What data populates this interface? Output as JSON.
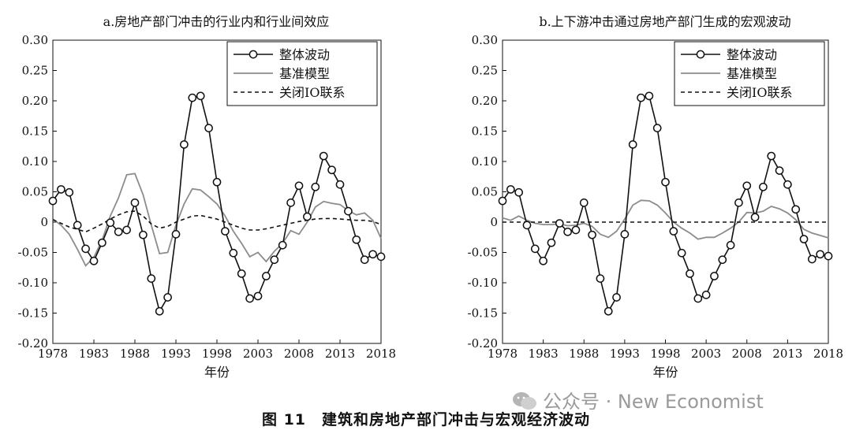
{
  "figure": {
    "caption": "图 11　建筑和房地产部门冲击与宏观经济波动",
    "watermark": "公众号 · New Economist"
  },
  "legend_labels": [
    "整体波动",
    "基准模型",
    "关闭IO联系"
  ],
  "colors": {
    "total": "#111111",
    "baseline": "#8c8c8c",
    "no_io": "#111111"
  },
  "chart_data": [
    {
      "type": "line",
      "title": "a.房地产部门冲击的行业内和行业间效应",
      "xlabel": "年份",
      "ylabel": "",
      "xlim": [
        1978,
        2018
      ],
      "ylim": [
        -0.2,
        0.3
      ],
      "xticks": [
        1978,
        1983,
        1988,
        1993,
        1998,
        2003,
        2008,
        2013,
        2018
      ],
      "yticks": [
        -0.2,
        -0.15,
        -0.1,
        -0.05,
        0,
        0.05,
        0.1,
        0.15,
        0.2,
        0.25,
        0.3
      ],
      "ytick_labels": [
        "-0.20",
        "-0.15",
        "-0.10",
        "-0.05",
        "0",
        "0.05",
        "0.10",
        "0.15",
        "0.20",
        "0.25",
        "0.30"
      ],
      "grid": false,
      "legend_position": "top-right",
      "x": [
        1978,
        1979,
        1980,
        1981,
        1982,
        1983,
        1984,
        1985,
        1986,
        1987,
        1988,
        1989,
        1990,
        1991,
        1992,
        1993,
        1994,
        1995,
        1996,
        1997,
        1998,
        1999,
        2000,
        2001,
        2002,
        2003,
        2004,
        2005,
        2006,
        2007,
        2008,
        2009,
        2010,
        2011,
        2012,
        2013,
        2014,
        2015,
        2016,
        2017,
        2018
      ],
      "series": [
        {
          "name": "整体波动",
          "style": "line-circle",
          "values": [
            0.035,
            0.054,
            0.049,
            -0.005,
            -0.044,
            -0.064,
            -0.034,
            -0.001,
            -0.016,
            -0.013,
            0.032,
            -0.021,
            -0.093,
            -0.147,
            -0.124,
            -0.02,
            0.128,
            0.205,
            0.208,
            0.155,
            0.066,
            -0.015,
            -0.051,
            -0.085,
            -0.126,
            -0.122,
            -0.089,
            -0.062,
            -0.038,
            0.032,
            0.06,
            0.009,
            0.058,
            0.109,
            0.086,
            0.062,
            0.018,
            -0.029,
            -0.062,
            -0.053,
            -0.057
          ]
        },
        {
          "name": "基准模型",
          "style": "solid",
          "values": [
            0.005,
            -0.005,
            -0.02,
            -0.045,
            -0.072,
            -0.058,
            -0.03,
            0.01,
            0.04,
            0.078,
            0.08,
            0.045,
            -0.005,
            -0.052,
            -0.05,
            -0.005,
            0.03,
            0.055,
            0.053,
            0.042,
            0.03,
            0.01,
            -0.015,
            -0.035,
            -0.057,
            -0.05,
            -0.065,
            -0.048,
            -0.035,
            -0.014,
            -0.02,
            0.0,
            0.025,
            0.034,
            0.031,
            0.029,
            0.019,
            0.012,
            0.015,
            0.003,
            -0.027
          ]
        },
        {
          "name": "关闭IO联系",
          "style": "dashed",
          "values": [
            0.004,
            -0.002,
            -0.008,
            -0.012,
            -0.016,
            -0.01,
            -0.003,
            0.005,
            0.012,
            0.017,
            0.018,
            0.01,
            -0.003,
            -0.01,
            -0.007,
            0.0,
            0.005,
            0.01,
            0.011,
            0.008,
            0.005,
            0.0,
            -0.005,
            -0.01,
            -0.013,
            -0.013,
            -0.011,
            -0.008,
            -0.005,
            -0.002,
            0.001,
            0.003,
            0.005,
            0.006,
            0.006,
            0.005,
            0.004,
            0.003,
            0.003,
            0.001,
            -0.004
          ]
        }
      ]
    },
    {
      "type": "line",
      "title": "b.上下游冲击通过房地产部门生成的宏观波动",
      "xlabel": "年份",
      "ylabel": "",
      "xlim": [
        1978,
        2018
      ],
      "ylim": [
        -0.2,
        0.3
      ],
      "xticks": [
        1978,
        1983,
        1988,
        1993,
        1998,
        2003,
        2008,
        2013,
        2018
      ],
      "yticks": [
        -0.2,
        -0.15,
        -0.1,
        -0.05,
        0,
        0.05,
        0.1,
        0.15,
        0.2,
        0.25,
        0.3
      ],
      "ytick_labels": [
        "-0.20",
        "-0.15",
        "-0.10",
        "-0.05",
        "0",
        "0.05",
        "0.10",
        "0.15",
        "0.20",
        "0.25",
        "0.30"
      ],
      "grid": false,
      "legend_position": "top-right",
      "x": [
        1978,
        1979,
        1980,
        1981,
        1982,
        1983,
        1984,
        1985,
        1986,
        1987,
        1988,
        1989,
        1990,
        1991,
        1992,
        1993,
        1994,
        1995,
        1996,
        1997,
        1998,
        1999,
        2000,
        2001,
        2002,
        2003,
        2004,
        2005,
        2006,
        2007,
        2008,
        2009,
        2010,
        2011,
        2012,
        2013,
        2014,
        2015,
        2016,
        2017,
        2018
      ],
      "series": [
        {
          "name": "整体波动",
          "style": "line-circle",
          "values": [
            0.035,
            0.054,
            0.049,
            -0.005,
            -0.044,
            -0.064,
            -0.034,
            -0.002,
            -0.016,
            -0.013,
            0.032,
            -0.021,
            -0.093,
            -0.147,
            -0.124,
            -0.02,
            0.128,
            0.205,
            0.208,
            0.155,
            0.066,
            -0.015,
            -0.051,
            -0.085,
            -0.126,
            -0.12,
            -0.089,
            -0.062,
            -0.038,
            0.032,
            0.06,
            0.008,
            0.058,
            0.109,
            0.085,
            0.062,
            0.021,
            -0.028,
            -0.061,
            -0.053,
            -0.056
          ]
        },
        {
          "name": "基准模型",
          "style": "solid",
          "values": [
            0.007,
            0.003,
            0.01,
            0.003,
            -0.002,
            -0.004,
            -0.004,
            -0.003,
            -0.006,
            -0.005,
            -0.002,
            -0.007,
            -0.02,
            -0.025,
            -0.015,
            0.005,
            0.028,
            0.036,
            0.035,
            0.028,
            0.015,
            0.0,
            -0.01,
            -0.018,
            -0.028,
            -0.025,
            -0.025,
            -0.018,
            -0.01,
            0.0,
            0.016,
            0.015,
            0.018,
            0.026,
            0.022,
            0.015,
            0.004,
            -0.012,
            -0.018,
            -0.022,
            -0.026
          ]
        },
        {
          "name": "关闭IO联系",
          "style": "dashed",
          "values": [
            0.0,
            0.0,
            0.0,
            0.0,
            0.0,
            0.0,
            0.0,
            0.0,
            0.0,
            0.0,
            0.0,
            0.0,
            0.0,
            0.0,
            0.0,
            0.0,
            0.0,
            0.0,
            0.0,
            0.0,
            0.0,
            0.0,
            0.0,
            0.0,
            0.0,
            0.0,
            0.0,
            0.0,
            0.0,
            0.0,
            0.0,
            0.0,
            0.0,
            0.0,
            0.0,
            0.0,
            0.0,
            0.0,
            0.0,
            0.0,
            0.0
          ]
        }
      ]
    }
  ]
}
